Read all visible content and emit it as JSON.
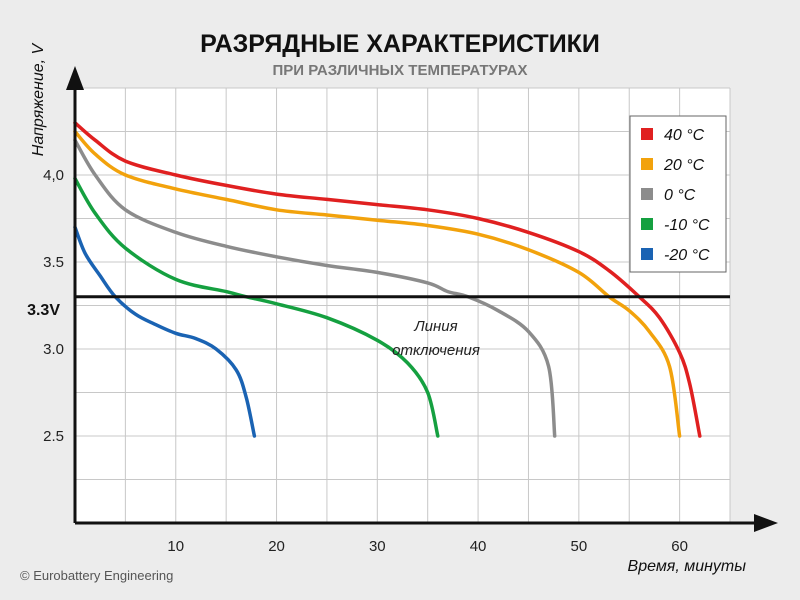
{
  "chart_data": {
    "type": "line",
    "title": "РАЗРЯДНЫЕ ХАРАКТЕРИСТИКИ",
    "subtitle": "ПРИ РАЗЛИЧНЫХ ТЕМПЕРАТУРАХ",
    "xlabel": "Время, минуты",
    "ylabel": "Напряжение, V",
    "xlim": [
      0,
      65
    ],
    "ylim": [
      2.0,
      4.5
    ],
    "x_ticks": [
      "10",
      "20",
      "30",
      "40",
      "50",
      "60"
    ],
    "y_ticks": [
      "2.5",
      "3.0",
      "3.5",
      "4,0"
    ],
    "grid": true,
    "legend_position": "top-right",
    "reference_line": {
      "y": 3.3,
      "tick_label": "3.3V",
      "label_line1": "Линия",
      "label_line2": "отключения"
    },
    "series": [
      {
        "name": "40 °C",
        "color": "#e02020",
        "points": [
          [
            0,
            4.3
          ],
          [
            2,
            4.2
          ],
          [
            5,
            4.08
          ],
          [
            10,
            4.0
          ],
          [
            15,
            3.94
          ],
          [
            20,
            3.89
          ],
          [
            25,
            3.86
          ],
          [
            30,
            3.83
          ],
          [
            35,
            3.8
          ],
          [
            40,
            3.75
          ],
          [
            45,
            3.67
          ],
          [
            50,
            3.56
          ],
          [
            53,
            3.45
          ],
          [
            56,
            3.3
          ],
          [
            58,
            3.18
          ],
          [
            60,
            2.98
          ],
          [
            61,
            2.8
          ],
          [
            62,
            2.5
          ]
        ]
      },
      {
        "name": "20 °C",
        "color": "#f2a20c",
        "points": [
          [
            0,
            4.25
          ],
          [
            2,
            4.12
          ],
          [
            5,
            4.0
          ],
          [
            10,
            3.92
          ],
          [
            15,
            3.86
          ],
          [
            20,
            3.8
          ],
          [
            25,
            3.77
          ],
          [
            30,
            3.74
          ],
          [
            35,
            3.71
          ],
          [
            40,
            3.66
          ],
          [
            45,
            3.57
          ],
          [
            50,
            3.44
          ],
          [
            53,
            3.3
          ],
          [
            55,
            3.22
          ],
          [
            57,
            3.1
          ],
          [
            59,
            2.9
          ],
          [
            60,
            2.5
          ]
        ]
      },
      {
        "name": "0 °C",
        "color": "#8c8c8c",
        "points": [
          [
            0,
            4.2
          ],
          [
            2,
            4.0
          ],
          [
            5,
            3.8
          ],
          [
            10,
            3.67
          ],
          [
            15,
            3.59
          ],
          [
            20,
            3.53
          ],
          [
            25,
            3.48
          ],
          [
            30,
            3.44
          ],
          [
            35,
            3.38
          ],
          [
            37,
            3.33
          ],
          [
            39,
            3.3
          ],
          [
            42,
            3.22
          ],
          [
            45,
            3.1
          ],
          [
            47,
            2.9
          ],
          [
            47.6,
            2.5
          ]
        ]
      },
      {
        "name": "-10 °C",
        "color": "#15a040",
        "points": [
          [
            0,
            3.98
          ],
          [
            2,
            3.78
          ],
          [
            5,
            3.58
          ],
          [
            10,
            3.4
          ],
          [
            15,
            3.33
          ],
          [
            17,
            3.3
          ],
          [
            20,
            3.26
          ],
          [
            25,
            3.18
          ],
          [
            30,
            3.05
          ],
          [
            33,
            2.92
          ],
          [
            35,
            2.75
          ],
          [
            36,
            2.5
          ]
        ]
      },
      {
        "name": "-20 °C",
        "color": "#1a63b3",
        "points": [
          [
            0,
            3.7
          ],
          [
            1,
            3.55
          ],
          [
            2.5,
            3.42
          ],
          [
            4,
            3.3
          ],
          [
            6,
            3.2
          ],
          [
            8,
            3.14
          ],
          [
            10,
            3.09
          ],
          [
            12,
            3.06
          ],
          [
            14,
            3.0
          ],
          [
            16,
            2.88
          ],
          [
            17,
            2.72
          ],
          [
            17.8,
            2.5
          ]
        ]
      }
    ]
  },
  "footer": {
    "copyright": "© Eurobattery Engineering"
  },
  "colors": {
    "background": "#ececec",
    "grid": "#c8c8c8",
    "plot_background": "#ffffff",
    "axis": "#111111"
  }
}
